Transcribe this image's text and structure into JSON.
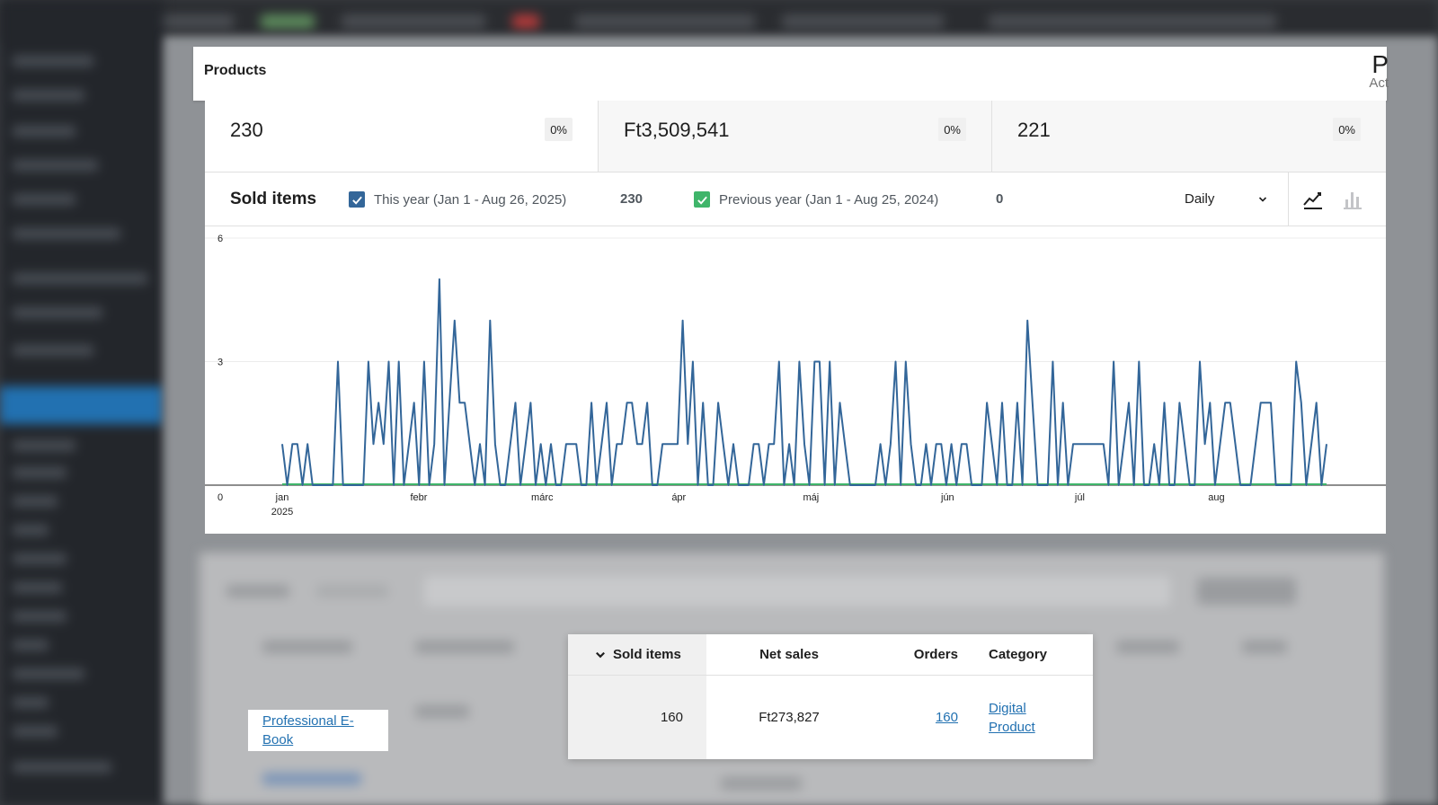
{
  "header": {
    "title": "Products",
    "edge_letter": "P",
    "edge_sub": "Act"
  },
  "stats": [
    {
      "value": "230",
      "delta": "0%"
    },
    {
      "value": "Ft3,509,541",
      "delta": "0%"
    },
    {
      "value": "221",
      "delta": "0%"
    }
  ],
  "legend": {
    "title": "Sold items",
    "this_year": {
      "label": "This year (Jan 1 - Aug 26, 2025)",
      "total": "230",
      "color": "#336699"
    },
    "previous_year": {
      "label": "Previous year (Jan 1 - Aug 25, 2024)",
      "total": "0",
      "color": "#3fb56a"
    },
    "interval": "Daily",
    "line_view_icon": "line-chart-icon",
    "bar_view_icon": "bar-chart-icon"
  },
  "chart_data": {
    "type": "line",
    "x_start": "2025-01-01",
    "x_end": "2025-08-26",
    "ylim": [
      0,
      6
    ],
    "y_ticks": [
      "0",
      "3",
      "6"
    ],
    "x_ticks": [
      {
        "date": "2025-01-01",
        "label": "jan",
        "sub": "2025"
      },
      {
        "date": "2025-02-01",
        "label": "febr"
      },
      {
        "date": "2025-03-01",
        "label": "márc"
      },
      {
        "date": "2025-04-01",
        "label": "ápr"
      },
      {
        "date": "2025-05-01",
        "label": "máj"
      },
      {
        "date": "2025-06-01",
        "label": "jún"
      },
      {
        "date": "2025-07-01",
        "label": "júl"
      },
      {
        "date": "2025-08-01",
        "label": "aug"
      }
    ],
    "grid": true,
    "series": [
      {
        "color": "#336699",
        "values": [
          1,
          0,
          1,
          1,
          0,
          1,
          0,
          0,
          0,
          0,
          0,
          3,
          0,
          0,
          0,
          0,
          0,
          3,
          1,
          2,
          1,
          3,
          0,
          3,
          0,
          1,
          2,
          0,
          3,
          0,
          1,
          5,
          0,
          2,
          4,
          2,
          2,
          1,
          0,
          1,
          0,
          4,
          1,
          0,
          0,
          1,
          2,
          0,
          1,
          2,
          0,
          1,
          0,
          1,
          0,
          0,
          1,
          1,
          1,
          0,
          0,
          2,
          0,
          1,
          2,
          0,
          1,
          1,
          2,
          2,
          1,
          1,
          2,
          0,
          0,
          1,
          1,
          1,
          1,
          4,
          1,
          3,
          0,
          2,
          0,
          0,
          2,
          1,
          0,
          1,
          0,
          0,
          0,
          1,
          1,
          0,
          1,
          1,
          3,
          0,
          1,
          0,
          3,
          1,
          0,
          3,
          3,
          0,
          3,
          0,
          2,
          1,
          0,
          0,
          0,
          0,
          0,
          0,
          1,
          0,
          1,
          3,
          0,
          3,
          1,
          0,
          0,
          1,
          0,
          1,
          1,
          0,
          1,
          0,
          1,
          1,
          0,
          0,
          0,
          2,
          1,
          0,
          2,
          0,
          0,
          2,
          0,
          4,
          2,
          0,
          0,
          0,
          3,
          0,
          2,
          0,
          1,
          1,
          1,
          1,
          1,
          1,
          1,
          0,
          3,
          0,
          1,
          2,
          0,
          3,
          0,
          0,
          1,
          0,
          2,
          0,
          0,
          2,
          1,
          0,
          0,
          3,
          1,
          2,
          0,
          1,
          2,
          2,
          1,
          0,
          0,
          0,
          1,
          2,
          2,
          2,
          0,
          0,
          0,
          0,
          3,
          2,
          0,
          1,
          2,
          0,
          1
        ],
        "label_y_zero": false
      },
      {
        "color": "#3fb56a",
        "values": [
          0
        ]
      }
    ]
  },
  "table": {
    "product": "Professional E-Book",
    "columns": [
      {
        "label": "Sold items",
        "sort": "chevron-down-icon"
      },
      {
        "label": "Net sales"
      },
      {
        "label": "Orders"
      },
      {
        "label": "Category"
      }
    ],
    "row": {
      "sold_items": "160",
      "net_sales": "Ft273,827",
      "orders": "160",
      "category": "Digital Product"
    }
  }
}
